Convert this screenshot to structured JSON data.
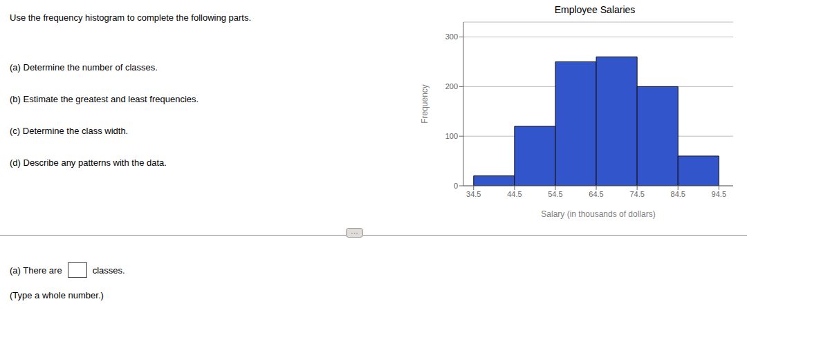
{
  "chart_data": {
    "type": "histogram",
    "title": "Employee Salaries",
    "x_label": "Salary (in thousands of dollars)",
    "y_label": "Frequency",
    "bins": [
      34.5,
      44.5,
      54.5,
      64.5,
      74.5,
      84.5,
      94.5
    ],
    "values": [
      20,
      120,
      250,
      260,
      200,
      60
    ],
    "color": "#3355cc",
    "xlim": [
      32.0,
      98.0
    ],
    "xticks": [
      34.5,
      44.5,
      54.5,
      64.5,
      74.5,
      84.5,
      94.5
    ],
    "ylim": [
      0,
      330
    ],
    "yticks": [
      0,
      100,
      200,
      300
    ],
    "grid": true,
    "annotations": [
      "Use the frequency histogram to complete the following parts.",
      "(a) Determine the number of classes.",
      "(b) Estimate the greatest and least frequencies.",
      "(c) Determine the class width.",
      "(d) Describe any patterns with the data.",
      "···",
      "(a) There are",
      "classes.",
      "(Type a whole number.)"
    ]
  }
}
